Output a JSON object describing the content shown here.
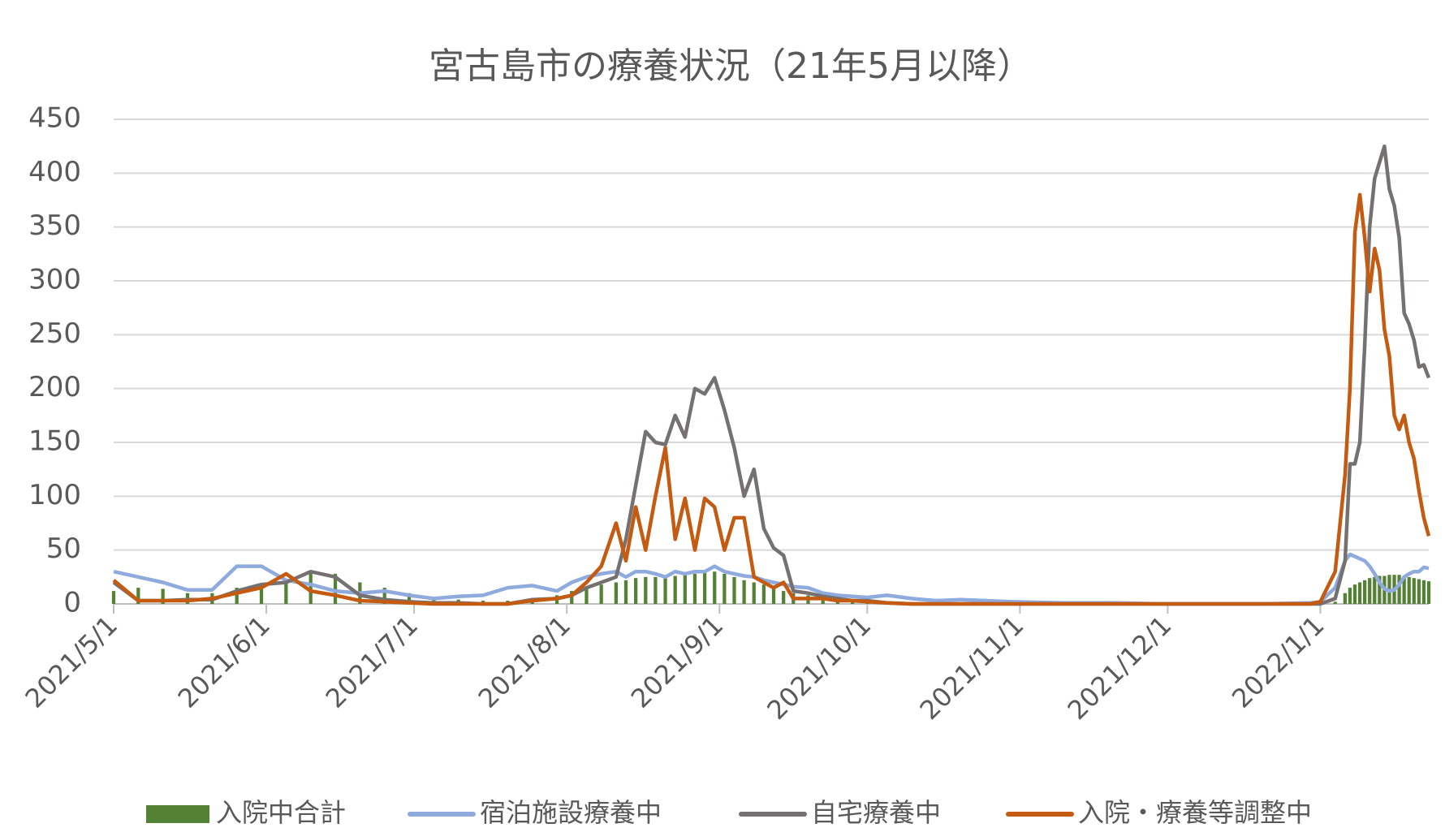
{
  "chart_data": {
    "type": "line",
    "title": "宮古島市の療養状況（21年5月以降）",
    "x": [
      "2021/5/1",
      "2021/5/6",
      "2021/5/11",
      "2021/5/16",
      "2021/5/21",
      "2021/5/26",
      "2021/5/31",
      "2021/6/5",
      "2021/6/10",
      "2021/6/15",
      "2021/6/20",
      "2021/6/25",
      "2021/6/30",
      "2021/7/5",
      "2021/7/10",
      "2021/7/15",
      "2021/7/20",
      "2021/7/25",
      "2021/7/30",
      "2021/8/2",
      "2021/8/5",
      "2021/8/8",
      "2021/8/11",
      "2021/8/13",
      "2021/8/15",
      "2021/8/17",
      "2021/8/19",
      "2021/8/21",
      "2021/8/23",
      "2021/8/25",
      "2021/8/27",
      "2021/8/29",
      "2021/8/31",
      "2021/9/2",
      "2021/9/4",
      "2021/9/6",
      "2021/9/8",
      "2021/9/10",
      "2021/9/12",
      "2021/9/14",
      "2021/9/16",
      "2021/9/19",
      "2021/9/22",
      "2021/9/25",
      "2021/9/28",
      "2021/10/1",
      "2021/10/5",
      "2021/10/10",
      "2021/10/15",
      "2021/10/20",
      "2021/10/25",
      "2021/10/30",
      "2021/11/10",
      "2021/11/20",
      "2021/11/30",
      "2021/12/10",
      "2021/12/20",
      "2021/12/30",
      "2022/1/1",
      "2022/1/4",
      "2022/1/6",
      "2022/1/7",
      "2022/1/8",
      "2022/1/9",
      "2022/1/10",
      "2022/1/11",
      "2022/1/12",
      "2022/1/13",
      "2022/1/14",
      "2022/1/15",
      "2022/1/16",
      "2022/1/17",
      "2022/1/18",
      "2022/1/19",
      "2022/1/20",
      "2022/1/21",
      "2022/1/22",
      "2022/1/23"
    ],
    "series": [
      {
        "name": "入院中合計",
        "type": "bar",
        "color": "#548235",
        "values": [
          12,
          15,
          14,
          10,
          10,
          15,
          18,
          22,
          30,
          28,
          20,
          15,
          10,
          6,
          4,
          3,
          3,
          5,
          8,
          12,
          15,
          18,
          20,
          22,
          24,
          25,
          25,
          24,
          26,
          27,
          28,
          30,
          30,
          28,
          25,
          22,
          20,
          18,
          15,
          12,
          10,
          8,
          6,
          5,
          4,
          4,
          2,
          1,
          0,
          0,
          0,
          0,
          0,
          0,
          0,
          0,
          0,
          0,
          0,
          2,
          10,
          15,
          18,
          20,
          22,
          24,
          25,
          26,
          26,
          27,
          27,
          27,
          26,
          25,
          24,
          23,
          22,
          21
        ]
      },
      {
        "name": "宿泊施設療養中",
        "type": "line",
        "color": "#8faadc",
        "values": [
          30,
          25,
          20,
          13,
          13,
          35,
          35,
          22,
          18,
          12,
          10,
          12,
          8,
          5,
          7,
          8,
          15,
          17,
          12,
          20,
          25,
          28,
          30,
          25,
          30,
          30,
          28,
          25,
          30,
          28,
          30,
          30,
          35,
          30,
          28,
          26,
          25,
          22,
          20,
          18,
          16,
          15,
          10,
          8,
          7,
          6,
          8,
          5,
          3,
          4,
          3,
          2,
          1,
          1,
          0,
          0,
          0,
          1,
          2,
          15,
          40,
          46,
          44,
          42,
          40,
          35,
          28,
          20,
          14,
          12,
          13,
          18,
          25,
          28,
          30,
          30,
          34,
          33
        ]
      },
      {
        "name": "自宅療養中",
        "type": "line",
        "color": "#767171",
        "values": [
          20,
          3,
          3,
          4,
          4,
          12,
          18,
          20,
          30,
          25,
          8,
          4,
          2,
          1,
          1,
          0,
          0,
          4,
          5,
          8,
          15,
          20,
          25,
          60,
          110,
          160,
          150,
          148,
          175,
          155,
          200,
          195,
          210,
          180,
          145,
          100,
          125,
          70,
          52,
          45,
          12,
          10,
          7,
          5,
          3,
          3,
          1,
          0,
          0,
          0,
          0,
          0,
          0,
          0,
          0,
          0,
          0,
          0,
          0,
          5,
          40,
          130,
          130,
          150,
          240,
          350,
          395,
          410,
          425,
          385,
          370,
          340,
          270,
          260,
          245,
          220,
          222,
          210
        ]
      },
      {
        "name": "入院・療養等調整中",
        "type": "line",
        "color": "#c55a11",
        "values": [
          22,
          3,
          3,
          3,
          5,
          10,
          15,
          28,
          12,
          8,
          3,
          2,
          1,
          0,
          0,
          0,
          0,
          3,
          5,
          8,
          20,
          35,
          75,
          40,
          90,
          50,
          100,
          145,
          60,
          98,
          50,
          98,
          90,
          50,
          80,
          80,
          25,
          20,
          15,
          20,
          5,
          5,
          5,
          3,
          3,
          2,
          1,
          0,
          0,
          0,
          0,
          0,
          0,
          0,
          0,
          0,
          0,
          0,
          2,
          30,
          120,
          200,
          345,
          380,
          340,
          290,
          330,
          310,
          255,
          230,
          175,
          162,
          175,
          150,
          135,
          105,
          80,
          63
        ]
      }
    ],
    "xlim": [
      "2021/5/1",
      "2022/1/23"
    ],
    "xticks": [
      "2021/5/1",
      "2021/6/1",
      "2021/7/1",
      "2021/8/1",
      "2021/9/1",
      "2021/10/1",
      "2021/11/1",
      "2021/12/1",
      "2022/1/1"
    ],
    "ylim": [
      0,
      450
    ],
    "yticks": [
      0,
      50,
      100,
      150,
      200,
      250,
      300,
      350,
      400,
      450
    ],
    "grid": true,
    "legend": "bottom"
  }
}
